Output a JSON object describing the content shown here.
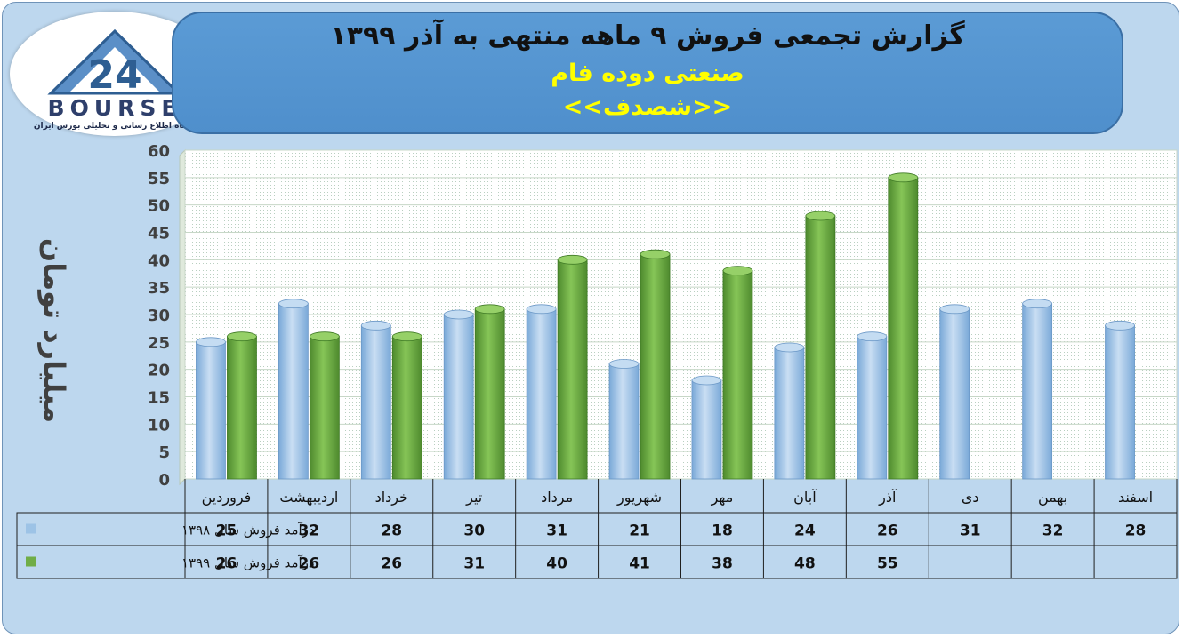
{
  "header": {
    "title": "گزارش تجمعی فروش ۹ ماهه منتهی به آذر ۱۳۹۹",
    "industry": "صنعتی دوده فام",
    "symbol": "<<شصدف>>"
  },
  "logo": {
    "wordmark": "BOURSE",
    "tagline": "پایگاه اطلاع رسانی و تحلیلی بورس ایران"
  },
  "colors": {
    "series_1398": "#9dc3e6",
    "series_1399": "#70ad47"
  },
  "chart_data": {
    "type": "bar",
    "title": "گزارش تجمعی فروش ۹ ماهه منتهی به آذر ۱۳۹۹",
    "xlabel": "",
    "ylabel": "میلیارد تومان",
    "ylim": [
      0,
      60
    ],
    "yticks": [
      0,
      5,
      10,
      15,
      20,
      25,
      30,
      35,
      40,
      45,
      50,
      55,
      60
    ],
    "grid": true,
    "categories": [
      "فروردین",
      "اردیبهشت",
      "خرداد",
      "تیر",
      "مرداد",
      "شهریور",
      "مهر",
      "آبان",
      "آذر",
      "دی",
      "بهمن",
      "اسفند"
    ],
    "series": [
      {
        "name": "درآمد فروش سال ۱۳۹۸",
        "values": [
          25,
          32,
          28,
          30,
          31,
          21,
          18,
          24,
          26,
          31,
          32,
          28
        ]
      },
      {
        "name": "درآمد فروش سال ۱۳۹۹",
        "values": [
          26,
          26,
          26,
          31,
          40,
          41,
          38,
          48,
          55,
          null,
          null,
          null
        ]
      }
    ],
    "legend": "data-table-left"
  }
}
